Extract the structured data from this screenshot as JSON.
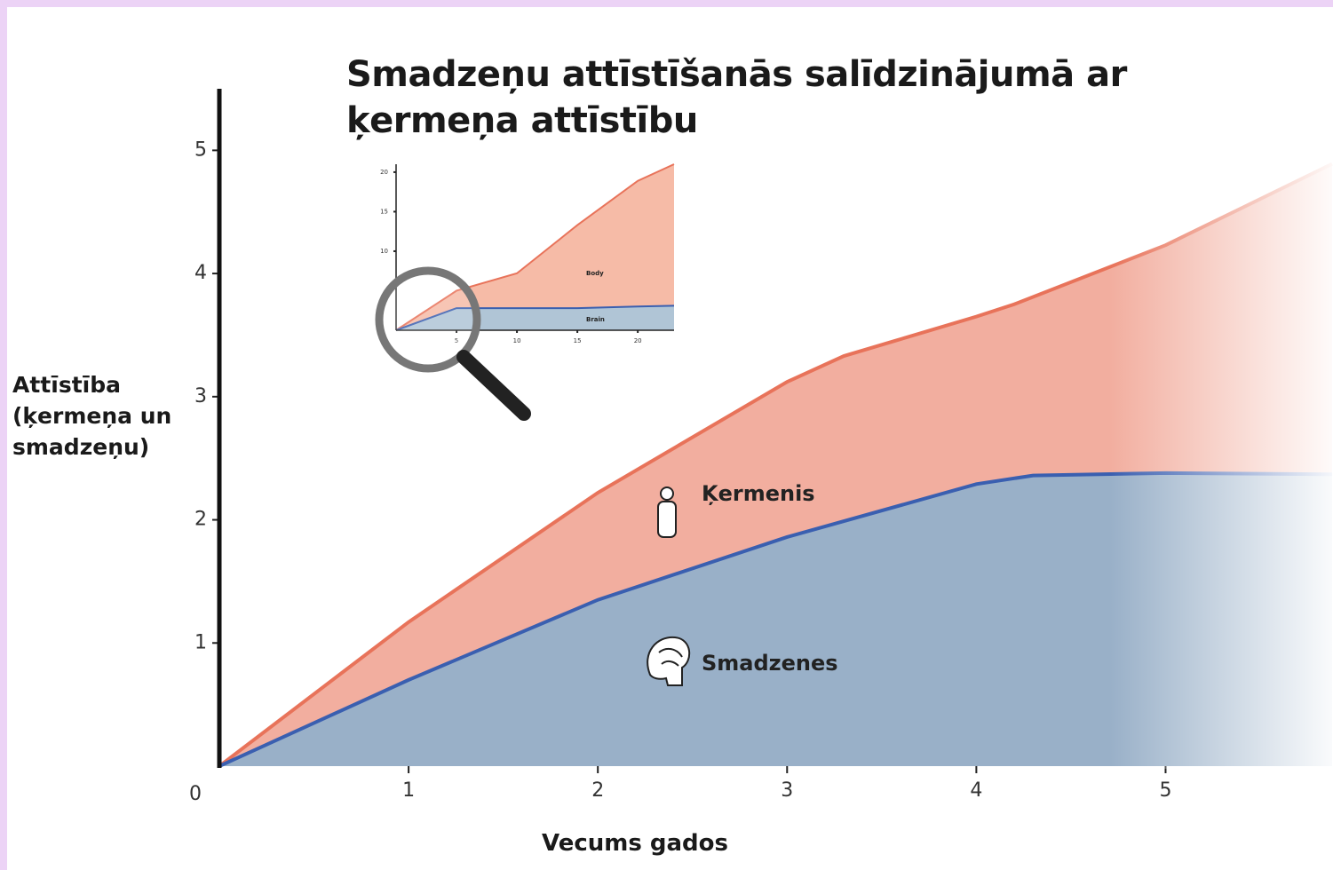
{
  "chart_data": [
    {
      "type": "area",
      "title": "Smadzeņu attīstīšanās salīdzinājumā ar ķermeņa attīstību",
      "x_label": "Vecums gados",
      "y_label": "Attīstība (ķermeņa un smadzeņu)",
      "xlim": [
        0,
        5.88
      ],
      "ylim": [
        0,
        5.5
      ],
      "xticks": [
        0,
        1,
        2,
        3,
        4,
        5
      ],
      "yticks": [
        1,
        2,
        3,
        4,
        5
      ],
      "series": [
        {
          "name": "Ķermenis",
          "color": "#e8735a",
          "fill": "#f1a595",
          "x": [
            0,
            1,
            2,
            3,
            3.3,
            4,
            4.2,
            5,
            5.88
          ],
          "values": [
            0,
            1.17,
            2.22,
            3.12,
            3.33,
            3.65,
            3.75,
            4.23,
            4.89
          ]
        },
        {
          "name": "Smadzenes",
          "color": "#3a5fb0",
          "fill": "#8fb0cc",
          "x": [
            0,
            1,
            2,
            3,
            4,
            4.3,
            5,
            5.88
          ],
          "values": [
            0,
            0.7,
            1.35,
            1.86,
            2.29,
            2.36,
            2.38,
            2.37
          ]
        }
      ]
    },
    {
      "type": "area",
      "xlim": [
        0,
        23
      ],
      "ylim": [
        0,
        21
      ],
      "xticks": [
        5,
        10,
        15,
        20
      ],
      "yticks": [
        10,
        15,
        20
      ],
      "series": [
        {
          "name": "Body",
          "color": "#e8735a",
          "fill": "#f5b49d",
          "x": [
            0,
            5,
            10,
            15,
            20,
            23
          ],
          "values": [
            0,
            5,
            7.2,
            13.3,
            18.9,
            21
          ]
        },
        {
          "name": "Brain",
          "color": "#3a5fb0",
          "fill": "#a9c6dc",
          "x": [
            0,
            5,
            10,
            15,
            20,
            23
          ],
          "values": [
            0,
            2.8,
            2.8,
            2.8,
            3,
            3.1
          ]
        }
      ]
    }
  ]
}
